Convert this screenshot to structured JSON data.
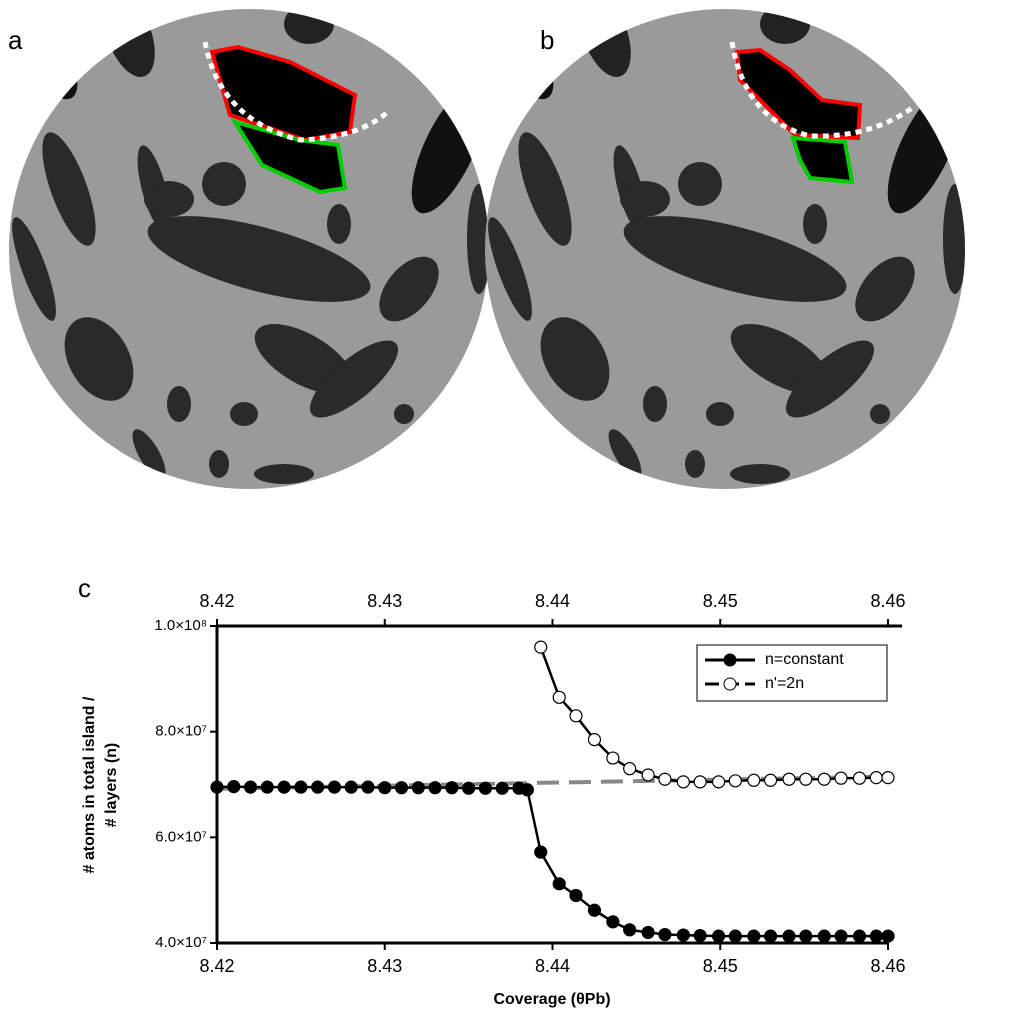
{
  "panel_labels": [
    "a",
    "b"
  ],
  "chart_data": {
    "type": "line",
    "panel_label": "c",
    "x_label": "Coverage (θPb)",
    "y_label": [
      "# atoms in total island /",
      "# layers (n)"
    ],
    "xlim": [
      8.42,
      8.46
    ],
    "xticks": [
      8.42,
      8.43,
      8.44,
      8.45,
      8.46
    ],
    "ylim": [
      40000000,
      100000000
    ],
    "yticks": [
      {
        "value": 40000000,
        "label": "4.0×10⁷"
      },
      {
        "value": 60000000,
        "label": "6.0×10⁷"
      },
      {
        "value": 80000000,
        "label": "8.0×10⁷"
      },
      {
        "value": 100000000,
        "label": "1.0×10⁸"
      }
    ],
    "legend": "upper right",
    "series": [
      {
        "name": "n=constant",
        "color": "#000000",
        "marker": "filled",
        "x": [
          8.42,
          8.421,
          8.422,
          8.423,
          8.424,
          8.425,
          8.426,
          8.427,
          8.428,
          8.429,
          8.43,
          8.431,
          8.432,
          8.433,
          8.434,
          8.435,
          8.436,
          8.437,
          8.438,
          8.4385,
          8.4393,
          8.4404,
          8.4414,
          8.4425,
          8.4436,
          8.4446,
          8.4457,
          8.4467,
          8.4478,
          8.4488,
          8.4499,
          8.4509,
          8.452,
          8.453,
          8.4541,
          8.4551,
          8.4562,
          8.4572,
          8.4583,
          8.4593,
          8.46
        ],
        "values": [
          69500000,
          69600000,
          69500000,
          69500000,
          69500000,
          69500000,
          69500000,
          69500000,
          69500000,
          69500000,
          69400000,
          69400000,
          69400000,
          69400000,
          69400000,
          69300000,
          69300000,
          69300000,
          69300000,
          69000000,
          57200000,
          51200000,
          49000000,
          46200000,
          44000000,
          42500000,
          42000000,
          41600000,
          41500000,
          41400000,
          41300000,
          41300000,
          41300000,
          41300000,
          41300000,
          41300000,
          41300000,
          41300000,
          41300000,
          41300000,
          41300000
        ]
      },
      {
        "name": "n'=2n",
        "color": "#000000",
        "marker": "open",
        "x": [
          8.4393,
          8.4404,
          8.4414,
          8.4425,
          8.4436,
          8.4446,
          8.4457,
          8.4467,
          8.4478,
          8.4488,
          8.4499,
          8.4509,
          8.452,
          8.453,
          8.4541,
          8.4551,
          8.4562,
          8.4572,
          8.4583,
          8.4593,
          8.46
        ],
        "values": [
          96000000,
          86500000,
          83000000,
          78500000,
          75000000,
          73000000,
          71800000,
          71000000,
          70500000,
          70500000,
          70500000,
          70700000,
          70800000,
          70800000,
          71000000,
          71000000,
          71000000,
          71200000,
          71200000,
          71300000,
          71300000
        ]
      }
    ],
    "trend_line": {
      "color": "#888888",
      "x": [
        8.42,
        8.46
      ],
      "values": [
        69200000,
        71500000
      ]
    }
  }
}
